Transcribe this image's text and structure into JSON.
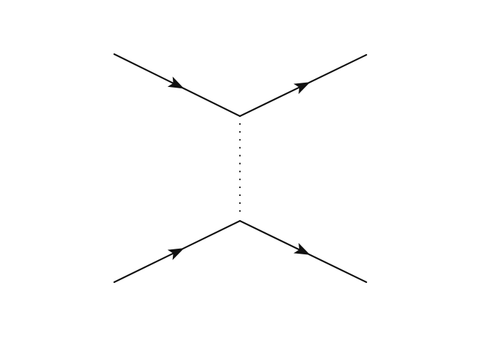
{
  "diagram": {
    "type": "feynman-diagram",
    "colors": {
      "background": "#ffffff",
      "ink": "#111111"
    },
    "vertices": [
      {
        "id": "upper-vertex"
      },
      {
        "id": "lower-vertex"
      }
    ],
    "edges": [
      {
        "id": "upper-incoming-line",
        "from": "external",
        "to": "upper-vertex",
        "style": "solid",
        "arrow": true
      },
      {
        "id": "upper-outgoing-line",
        "from": "upper-vertex",
        "to": "external",
        "style": "solid",
        "arrow": true
      },
      {
        "id": "lower-incoming-line",
        "from": "external",
        "to": "lower-vertex",
        "style": "solid",
        "arrow": true
      },
      {
        "id": "lower-outgoing-line",
        "from": "lower-vertex",
        "to": "external",
        "style": "solid",
        "arrow": true
      },
      {
        "id": "propagator-line",
        "from": "upper-vertex",
        "to": "lower-vertex",
        "style": "dotted",
        "arrow": false
      }
    ]
  }
}
